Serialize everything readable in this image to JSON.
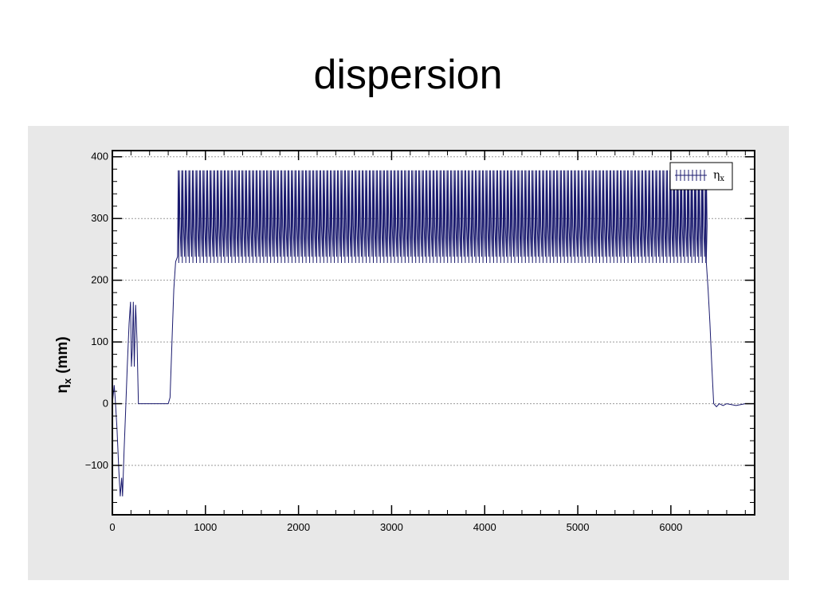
{
  "slide": {
    "title": "dispersion"
  },
  "chart_data": {
    "type": "line",
    "title": "",
    "xlabel": "",
    "ylabel": "ηx (mm)",
    "ylabel_main": "η",
    "ylabel_sub": "x",
    "ylabel_unit": "(mm)",
    "xlim": [
      0,
      6900
    ],
    "ylim": [
      -180,
      410
    ],
    "x_ticks": [
      0,
      1000,
      2000,
      3000,
      4000,
      5000,
      6000
    ],
    "x_tick_labels": [
      "0",
      "1000",
      "2000",
      "3000",
      "4000",
      "5000",
      "6000"
    ],
    "y_ticks": [
      -100,
      0,
      100,
      200,
      300,
      400
    ],
    "y_tick_labels": [
      "−100",
      "0",
      "100",
      "200",
      "300",
      "400"
    ],
    "grid": true,
    "legend_position": "top-right",
    "series": [
      {
        "name": "ηx",
        "name_main": "η",
        "name_sub": "x",
        "color": "#1a1a6e",
        "profile": [
          [
            0,
            0
          ],
          [
            20,
            30
          ],
          [
            30,
            10
          ],
          [
            50,
            -40
          ],
          [
            70,
            -110
          ],
          [
            85,
            -150
          ],
          [
            100,
            -120
          ],
          [
            110,
            -150
          ],
          [
            125,
            -80
          ],
          [
            140,
            -20
          ],
          [
            160,
            60
          ],
          [
            180,
            130
          ],
          [
            195,
            165
          ],
          [
            205,
            60
          ],
          [
            215,
            90
          ],
          [
            225,
            165
          ],
          [
            235,
            60
          ],
          [
            250,
            160
          ],
          [
            265,
            100
          ],
          [
            280,
            0
          ],
          [
            600,
            0
          ],
          [
            620,
            10
          ],
          [
            640,
            100
          ],
          [
            660,
            185
          ],
          [
            680,
            230
          ]
        ],
        "oscillation": {
          "x_start": 700,
          "x_end": 6370,
          "period": 38,
          "y_max": 378,
          "y_min": 228
        },
        "tail": [
          [
            6380,
            230
          ],
          [
            6400,
            185
          ],
          [
            6420,
            130
          ],
          [
            6440,
            60
          ],
          [
            6460,
            0
          ],
          [
            6490,
            -5
          ],
          [
            6520,
            0
          ],
          [
            6560,
            -3
          ],
          [
            6600,
            0
          ],
          [
            6700,
            -3
          ],
          [
            6800,
            0
          ],
          [
            6900,
            0
          ]
        ]
      }
    ]
  }
}
